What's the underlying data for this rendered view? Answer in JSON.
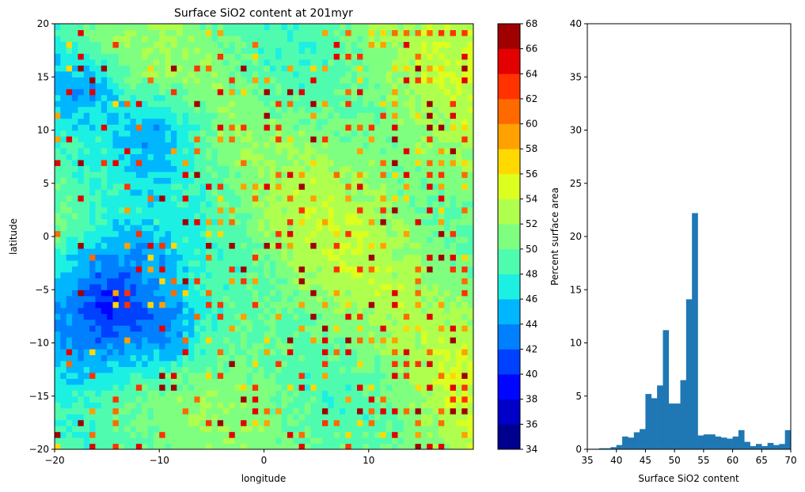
{
  "chart_data": [
    {
      "type": "heatmap",
      "title": "Surface SiO2 content at 201myr",
      "xlabel": "longitude",
      "ylabel": "latitude",
      "xlim": [
        -20,
        20
      ],
      "ylim": [
        -20,
        20
      ],
      "xticks": [
        -20,
        -10,
        0,
        10
      ],
      "yticks": [
        -20,
        -15,
        -10,
        -5,
        0,
        5,
        10,
        15,
        20
      ],
      "description_values": "filled contour map of surface SiO2 content, mostly 48-56 with scattered high (64-68) spots",
      "colorbar": {
        "levels": [
          34,
          36,
          38,
          40,
          42,
          44,
          46,
          48,
          50,
          52,
          54,
          56,
          58,
          60,
          62,
          64,
          66,
          68
        ],
        "colors": [
          "#00008f",
          "#0000c8",
          "#0005ff",
          "#0040ff",
          "#0080ff",
          "#00b6ff",
          "#1cf0e2",
          "#4ffcaf",
          "#7fff7f",
          "#afff4f",
          "#dcff1f",
          "#ffd900",
          "#ffa100",
          "#ff6a00",
          "#ff3200",
          "#e40000",
          "#9f0000"
        ]
      }
    },
    {
      "type": "bar",
      "xlabel": "Surface SiO2 content",
      "ylabel": "Percent surface area",
      "xlim": [
        35,
        70
      ],
      "ylim": [
        0,
        40
      ],
      "xticks": [
        35,
        40,
        45,
        50,
        55,
        60,
        65,
        70
      ],
      "yticks": [
        0,
        5,
        10,
        15,
        20,
        25,
        30,
        35,
        40
      ],
      "bar_color": "#1f77b4",
      "bin_width": 1,
      "bins": [
        {
          "x": 35,
          "y": 0.05
        },
        {
          "x": 36,
          "y": 0.05
        },
        {
          "x": 37,
          "y": 0.1
        },
        {
          "x": 38,
          "y": 0.1
        },
        {
          "x": 39,
          "y": 0.2
        },
        {
          "x": 40,
          "y": 0.4
        },
        {
          "x": 41,
          "y": 1.2
        },
        {
          "x": 42,
          "y": 1.1
        },
        {
          "x": 43,
          "y": 1.6
        },
        {
          "x": 44,
          "y": 1.9
        },
        {
          "x": 45,
          "y": 5.2
        },
        {
          "x": 46,
          "y": 4.8
        },
        {
          "x": 47,
          "y": 6.0
        },
        {
          "x": 48,
          "y": 11.2
        },
        {
          "x": 49,
          "y": 4.3
        },
        {
          "x": 50,
          "y": 4.3
        },
        {
          "x": 51,
          "y": 6.5
        },
        {
          "x": 52,
          "y": 14.1
        },
        {
          "x": 53,
          "y": 22.2
        },
        {
          "x": 54,
          "y": 1.3
        },
        {
          "x": 55,
          "y": 1.4
        },
        {
          "x": 56,
          "y": 1.4
        },
        {
          "x": 57,
          "y": 1.2
        },
        {
          "x": 58,
          "y": 1.1
        },
        {
          "x": 59,
          "y": 1.0
        },
        {
          "x": 60,
          "y": 1.2
        },
        {
          "x": 61,
          "y": 1.8
        },
        {
          "x": 62,
          "y": 0.7
        },
        {
          "x": 63,
          "y": 0.3
        },
        {
          "x": 64,
          "y": 0.5
        },
        {
          "x": 65,
          "y": 0.3
        },
        {
          "x": 66,
          "y": 0.6
        },
        {
          "x": 67,
          "y": 0.4
        },
        {
          "x": 68,
          "y": 0.5
        },
        {
          "x": 69,
          "y": 1.8
        }
      ]
    }
  ]
}
